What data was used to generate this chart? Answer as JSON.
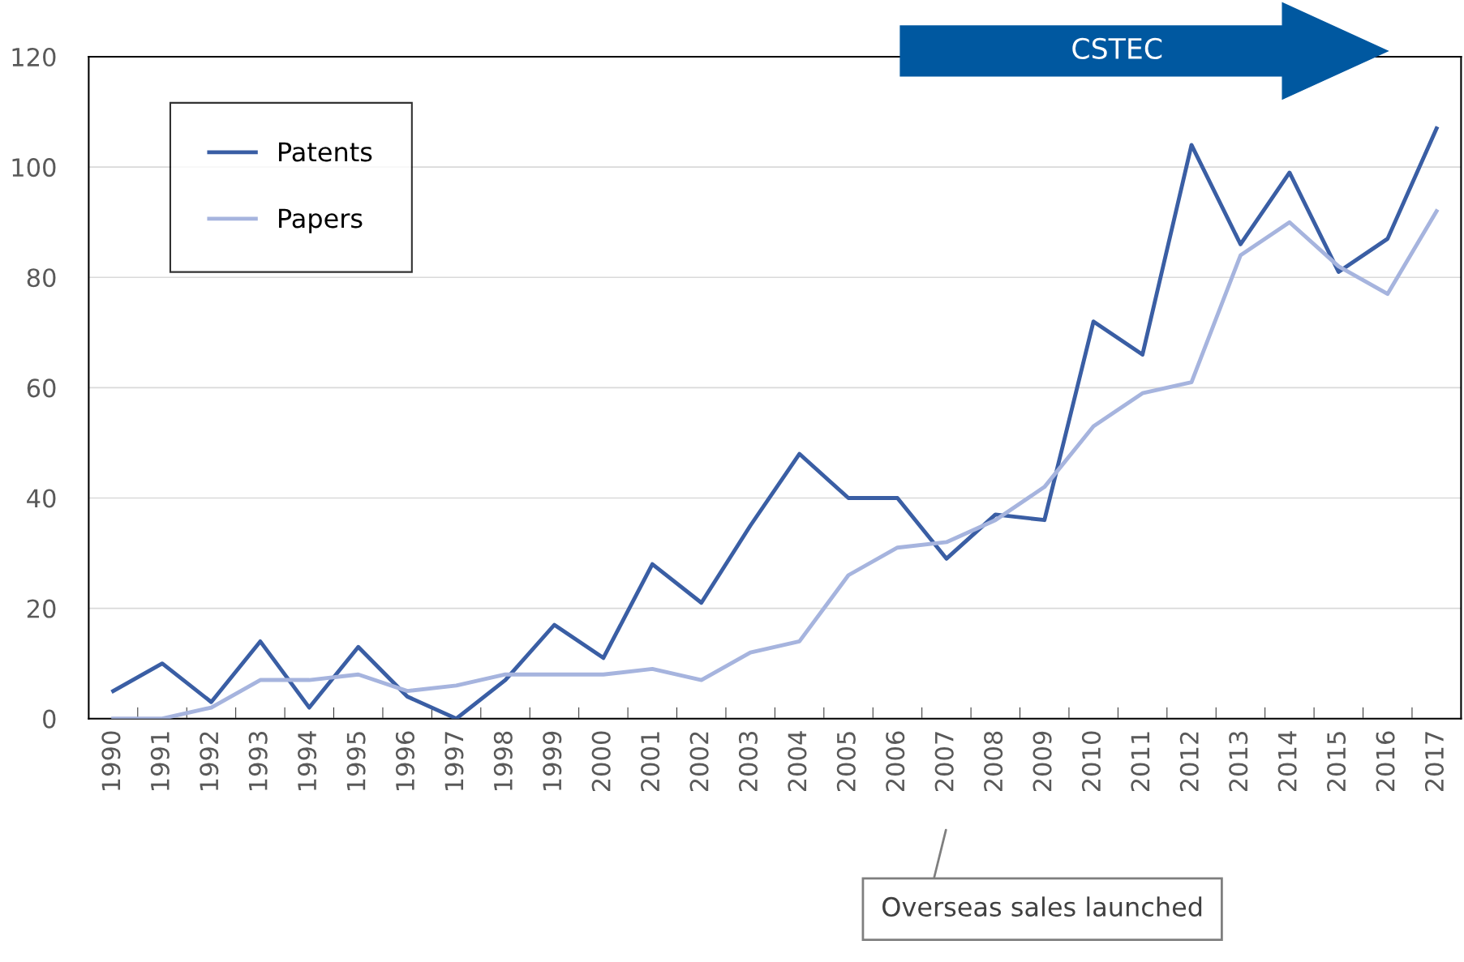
{
  "chart_data": {
    "type": "line",
    "categories": [
      "1990",
      "1991",
      "1992",
      "1993",
      "1994",
      "1995",
      "1996",
      "1997",
      "1998",
      "1999",
      "2000",
      "2001",
      "2002",
      "2003",
      "2004",
      "2005",
      "2006",
      "2007",
      "2008",
      "2009",
      "2010",
      "2011",
      "2012",
      "2013",
      "2014",
      "2015",
      "2016",
      "2017"
    ],
    "series": [
      {
        "name": "Patents",
        "color": "#3a5ea4",
        "values": [
          5,
          10,
          3,
          14,
          2,
          13,
          4,
          0,
          7,
          17,
          11,
          28,
          21,
          35,
          48,
          40,
          40,
          29,
          37,
          36,
          72,
          66,
          104,
          86,
          99,
          81,
          87,
          107
        ]
      },
      {
        "name": "Papers",
        "color": "#a6b4de",
        "values": [
          0,
          0,
          2,
          7,
          7,
          8,
          5,
          6,
          8,
          8,
          8,
          9,
          7,
          12,
          14,
          26,
          31,
          32,
          36,
          42,
          53,
          59,
          61,
          84,
          90,
          82,
          77,
          92
        ]
      }
    ],
    "ylim": [
      0,
      120
    ],
    "yticks": [
      0,
      20,
      40,
      60,
      80,
      100,
      120
    ],
    "grid": "y",
    "legend": "top left",
    "marker": "none",
    "line_style": "solid",
    "annotations": [
      "CSTEC",
      "Overseas sales launched"
    ]
  }
}
